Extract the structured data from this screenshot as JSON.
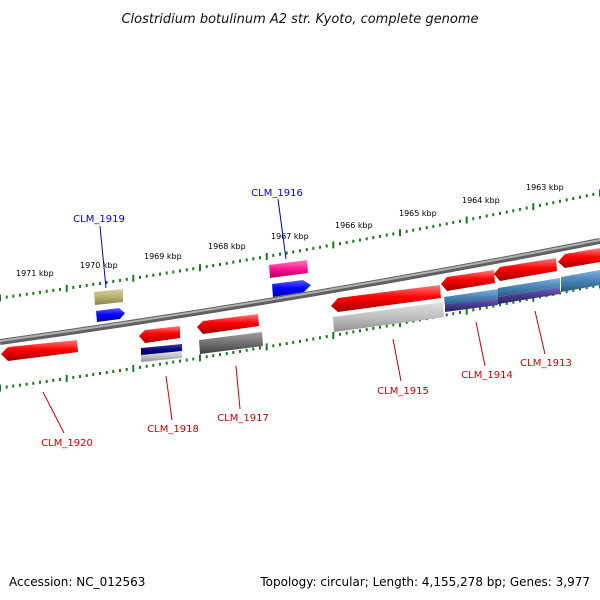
{
  "title": "Clostridium botulinum A2 str. Kyoto, complete genome",
  "footer": {
    "accession": "Accession: NC_012563",
    "summary": "Topology: circular; Length: 4,155,278 bp; Genes: 3,977"
  },
  "scale_labels": [
    "1971 kbp",
    "1970 kbp",
    "1969 kbp",
    "1968 kbp",
    "1967 kbp",
    "1966 kbp",
    "1965 kbp",
    "1964 kbp",
    "1963 kbp"
  ],
  "genes": [
    {
      "name": "CLM_1919",
      "strand": "forward",
      "color": "#0000cc"
    },
    {
      "name": "CLM_1916",
      "strand": "forward",
      "color": "#0000cc"
    },
    {
      "name": "CLM_1920",
      "strand": "reverse",
      "color": "#cc0000"
    },
    {
      "name": "CLM_1918",
      "strand": "reverse",
      "color": "#cc0000"
    },
    {
      "name": "CLM_1917",
      "strand": "reverse",
      "color": "#cc0000"
    },
    {
      "name": "CLM_1915",
      "strand": "reverse",
      "color": "#cc0000"
    },
    {
      "name": "CLM_1914",
      "strand": "reverse",
      "color": "#cc0000"
    },
    {
      "name": "CLM_1913",
      "strand": "reverse",
      "color": "#cc0000"
    }
  ],
  "colors": {
    "backbone": "#808080",
    "tick": "#1a7a1a",
    "gene_red": "#ff0000",
    "gene_blue": "#0000ff",
    "gene_pink": "#ff1493",
    "gene_olive": "#b8b070",
    "gene_navy": "#000080",
    "gene_gray": "#707070",
    "gene_lightgray": "#c0c0c0",
    "gene_steelblue": "#4682b4",
    "gene_purple": "#483d8b"
  }
}
